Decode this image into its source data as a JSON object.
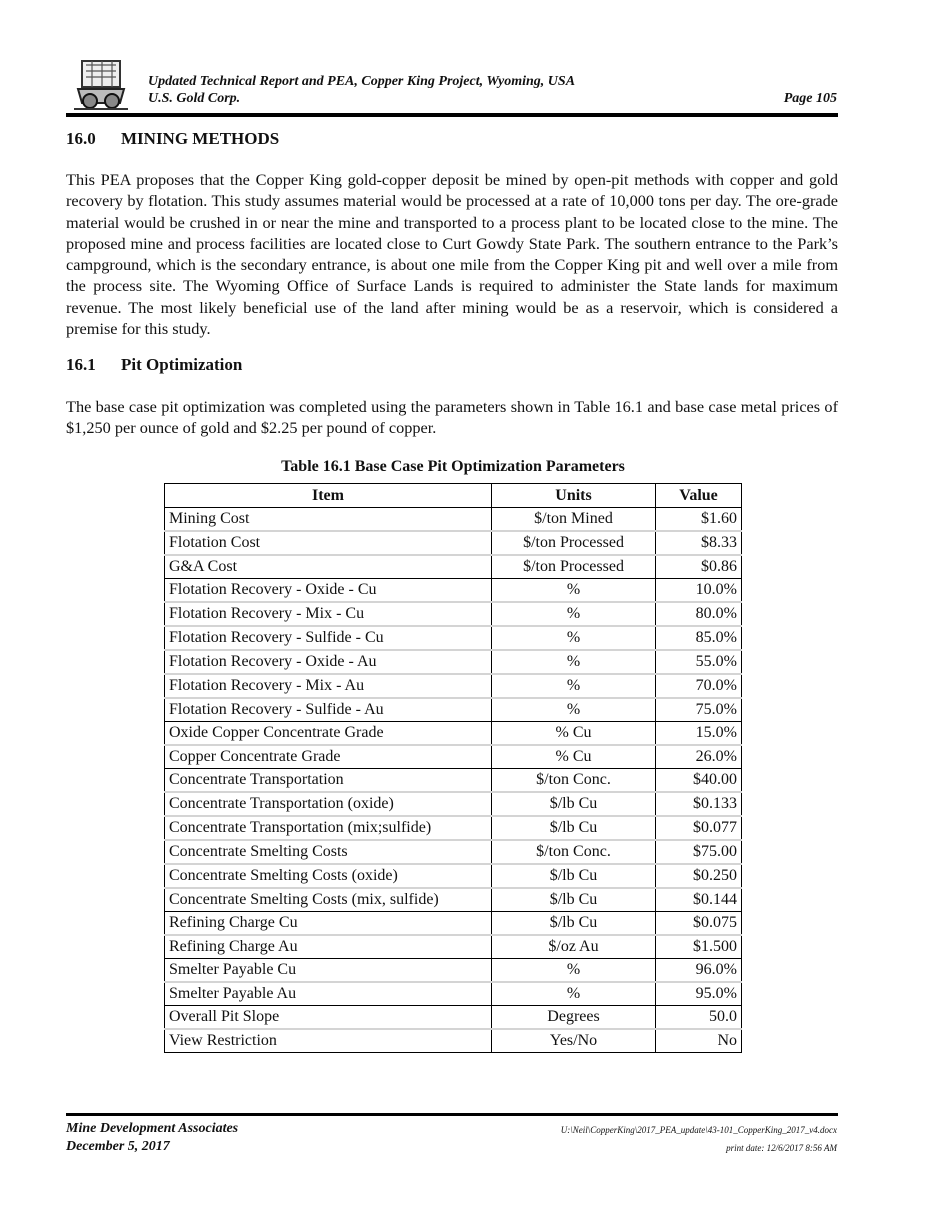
{
  "header": {
    "title": "Updated Technical Report and PEA, Copper King Project, Wyoming, USA",
    "company": "U.S. Gold Corp.",
    "page": "Page 105"
  },
  "section": {
    "number": "16.0",
    "title": "MINING METHODS"
  },
  "paragraph1": "This PEA proposes that the Copper King gold-copper deposit be mined by open-pit methods with copper and gold recovery by flotation.  This study assumes material would be processed at a rate of 10,000 tons per day.  The ore-grade material would be crushed in or near the mine and transported to a process plant to be located close to the mine.  The proposed mine and process facilities are located close to Curt Gowdy State Park.  The southern entrance to the Park’s campground, which is the secondary entrance, is about one mile from the Copper King pit and well over a mile from the process site.  The Wyoming Office of Surface Lands is required to administer the State lands for maximum revenue.  The most likely beneficial use of the land after mining would be as a reservoir, which is considered a premise for this study.",
  "subsection": {
    "number": "16.1",
    "title": "Pit Optimization"
  },
  "paragraph2": "The base case pit optimization was completed using the parameters shown in Table 16.1 and base case metal prices of $1,250 per ounce of gold and $2.25 per pound of copper.",
  "table": {
    "caption": "Table 16.1 Base Case Pit Optimization Parameters",
    "headers": [
      "Item",
      "Units",
      "Value"
    ],
    "groups": [
      [
        [
          "Mining Cost",
          "$/ton Mined",
          "$1.60"
        ],
        [
          "Flotation Cost",
          "$/ton Processed",
          "$8.33"
        ],
        [
          "G&A Cost",
          "$/ton Processed",
          "$0.86"
        ]
      ],
      [
        [
          "Flotation Recovery - Oxide - Cu",
          "%",
          "10.0%"
        ],
        [
          "Flotation Recovery - Mix - Cu",
          "%",
          "80.0%"
        ],
        [
          "Flotation Recovery - Sulfide - Cu",
          "%",
          "85.0%"
        ],
        [
          "Flotation Recovery - Oxide - Au",
          "%",
          "55.0%"
        ],
        [
          "Flotation Recovery - Mix - Au",
          "%",
          "70.0%"
        ],
        [
          "Flotation Recovery - Sulfide - Au",
          "%",
          "75.0%"
        ]
      ],
      [
        [
          "Oxide Copper Concentrate Grade",
          "% Cu",
          "15.0%"
        ],
        [
          "Copper Concentrate Grade",
          "% Cu",
          "26.0%"
        ]
      ],
      [
        [
          "Concentrate Transportation",
          "$/ton Conc.",
          "$40.00"
        ],
        [
          "Concentrate Transportation (oxide)",
          "$/lb Cu",
          "$0.133"
        ],
        [
          "Concentrate Transportation (mix;sulfide)",
          "$/lb Cu",
          "$0.077"
        ],
        [
          "Concentrate Smelting Costs",
          "$/ton Conc.",
          "$75.00"
        ],
        [
          "Concentrate Smelting Costs (oxide)",
          "$/lb Cu",
          "$0.250"
        ],
        [
          "Concentrate Smelting Costs (mix, sulfide)",
          "$/lb Cu",
          "$0.144"
        ]
      ],
      [
        [
          "Refining Charge Cu",
          "$/lb Cu",
          "$0.075"
        ],
        [
          "Refining Charge Au",
          "$/oz Au",
          "$1.500"
        ]
      ],
      [
        [
          "Smelter Payable Cu",
          "%",
          "96.0%"
        ],
        [
          "Smelter Payable Au",
          "%",
          "95.0%"
        ]
      ],
      [
        [
          "Overall Pit Slope",
          "Degrees",
          "50.0"
        ],
        [
          "View Restriction",
          "Yes/No",
          "No"
        ]
      ]
    ]
  },
  "footer": {
    "company": "Mine Development Associates",
    "date": "December 5, 2017",
    "file_path": "U:\\Neil\\CopperKing\\2017_PEA_update\\43-101_CopperKing_2017_v4.docx",
    "print_date": "print date: 12/6/2017 8:56 AM"
  }
}
